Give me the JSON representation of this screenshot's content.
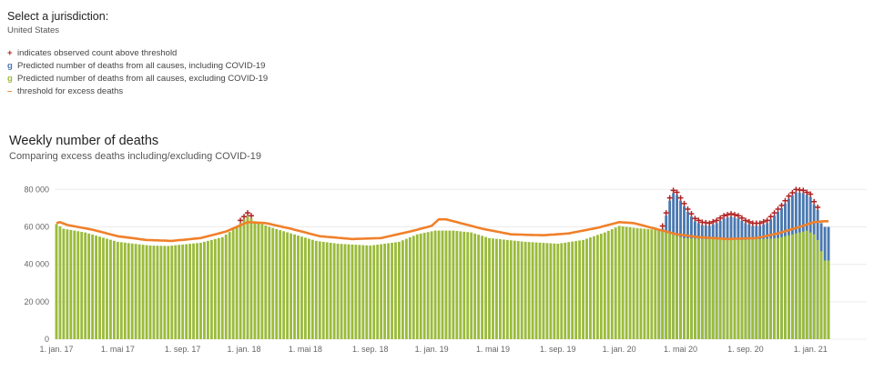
{
  "jurisdiction": {
    "label": "Select a jurisdiction:",
    "value": "United States"
  },
  "legend": [
    {
      "symbol": "+",
      "text": "indicates observed count above threshold",
      "color": "#b22222"
    },
    {
      "symbol": "g",
      "text": "Predicted number of deaths from all causes, including COVID-19",
      "color": "#4a78b0"
    },
    {
      "symbol": "g",
      "text": "Predicted number of deaths from all causes, excluding COVID-19",
      "color": "#9bbb3c"
    },
    {
      "symbol": "–",
      "text": "threshold for excess deaths",
      "color": "#f0802a"
    }
  ],
  "chart_data": {
    "type": "bar",
    "title": "Weekly number of deaths",
    "subtitle": "Comparing excess deaths including/excluding COVID-19",
    "ylim": [
      0,
      85000
    ],
    "yticks": [
      0,
      20000,
      40000,
      60000,
      80000
    ],
    "ytick_labels": [
      "0",
      "20 000",
      "40 000",
      "60 000",
      "80 000"
    ],
    "xticks": [
      {
        "label": "1. jan. 17",
        "week": 0
      },
      {
        "label": "1. mai 17",
        "week": 17
      },
      {
        "label": "1. sep. 17",
        "week": 35
      },
      {
        "label": "1. jan. 18",
        "week": 52
      },
      {
        "label": "1. mai 18",
        "week": 69
      },
      {
        "label": "1. sep. 18",
        "week": 87
      },
      {
        "label": "1. jan. 19",
        "week": 104
      },
      {
        "label": "1. mai 19",
        "week": 121
      },
      {
        "label": "1. sep. 19",
        "week": 139
      },
      {
        "label": "1. jan. 20",
        "week": 156
      },
      {
        "label": "1. mai 20",
        "week": 173
      },
      {
        "label": "1. sep. 20",
        "week": 191
      },
      {
        "label": "1. jan. 21",
        "week": 209
      }
    ],
    "weeks": 215,
    "grid": true,
    "series": [
      {
        "name": "Predicted number of deaths from all causes, excluding COVID-19",
        "color": "#9bbb3c",
        "key": [
          [
            0,
            61500
          ],
          [
            2,
            59000
          ],
          [
            8,
            57000
          ],
          [
            17,
            52000
          ],
          [
            26,
            50000
          ],
          [
            31,
            49800
          ],
          [
            40,
            51500
          ],
          [
            46,
            54500
          ],
          [
            50,
            60000
          ],
          [
            53,
            66000
          ],
          [
            55,
            63000
          ],
          [
            59,
            60000
          ],
          [
            65,
            56500
          ],
          [
            72,
            52500
          ],
          [
            78,
            51000
          ],
          [
            87,
            50000
          ],
          [
            95,
            52000
          ],
          [
            100,
            56000
          ],
          [
            105,
            58000
          ],
          [
            110,
            58000
          ],
          [
            115,
            57000
          ],
          [
            120,
            54000
          ],
          [
            130,
            52000
          ],
          [
            139,
            51000
          ],
          [
            146,
            53000
          ],
          [
            152,
            57000
          ],
          [
            156,
            60500
          ],
          [
            160,
            59500
          ],
          [
            166,
            58500
          ],
          [
            169,
            57000
          ],
          [
            174,
            54000
          ],
          [
            180,
            53500
          ],
          [
            190,
            53000
          ],
          [
            196,
            53500
          ],
          [
            200,
            54000
          ],
          [
            204,
            56000
          ],
          [
            208,
            58000
          ],
          [
            210,
            56000
          ],
          [
            211,
            53000
          ],
          [
            212,
            47000
          ],
          [
            213,
            42000
          ]
        ]
      },
      {
        "name": "Predicted number of deaths from all causes, including COVID-19",
        "color": "#4a78b0",
        "key": [
          [
            0,
            61500
          ],
          [
            2,
            59000
          ],
          [
            8,
            57000
          ],
          [
            17,
            52000
          ],
          [
            26,
            50000
          ],
          [
            31,
            49800
          ],
          [
            40,
            51500
          ],
          [
            46,
            54500
          ],
          [
            50,
            60000
          ],
          [
            53,
            66000
          ],
          [
            55,
            63000
          ],
          [
            59,
            60000
          ],
          [
            65,
            56500
          ],
          [
            72,
            52500
          ],
          [
            78,
            51000
          ],
          [
            87,
            50000
          ],
          [
            95,
            52000
          ],
          [
            100,
            56000
          ],
          [
            105,
            58000
          ],
          [
            110,
            58000
          ],
          [
            115,
            57000
          ],
          [
            120,
            54000
          ],
          [
            130,
            52000
          ],
          [
            139,
            51000
          ],
          [
            146,
            53000
          ],
          [
            152,
            57000
          ],
          [
            156,
            60500
          ],
          [
            160,
            59500
          ],
          [
            166,
            58500
          ],
          [
            168,
            59000
          ],
          [
            169,
            66000
          ],
          [
            170,
            74000
          ],
          [
            171,
            78000
          ],
          [
            172,
            77000
          ],
          [
            173,
            74000
          ],
          [
            175,
            68000
          ],
          [
            177,
            63000
          ],
          [
            179,
            61000
          ],
          [
            181,
            60500
          ],
          [
            183,
            62000
          ],
          [
            185,
            64500
          ],
          [
            187,
            65500
          ],
          [
            189,
            64500
          ],
          [
            191,
            62000
          ],
          [
            193,
            60500
          ],
          [
            195,
            60500
          ],
          [
            197,
            62000
          ],
          [
            199,
            66000
          ],
          [
            201,
            70000
          ],
          [
            203,
            75000
          ],
          [
            205,
            78500
          ],
          [
            207,
            78000
          ],
          [
            209,
            76000
          ],
          [
            210,
            72000
          ],
          [
            211,
            69000
          ],
          [
            212,
            62000
          ],
          [
            213,
            60000
          ]
        ]
      },
      {
        "name": "threshold for excess deaths",
        "color": "#f0802a",
        "type": "line",
        "key": [
          [
            0,
            62000
          ],
          [
            1,
            62500
          ],
          [
            3,
            61000
          ],
          [
            10,
            58500
          ],
          [
            17,
            55000
          ],
          [
            25,
            53000
          ],
          [
            32,
            52500
          ],
          [
            40,
            54000
          ],
          [
            47,
            57500
          ],
          [
            53,
            62500
          ],
          [
            58,
            62000
          ],
          [
            65,
            59000
          ],
          [
            73,
            55000
          ],
          [
            82,
            53500
          ],
          [
            90,
            54000
          ],
          [
            98,
            57500
          ],
          [
            104,
            60500
          ],
          [
            106,
            64000
          ],
          [
            108,
            64000
          ],
          [
            112,
            62000
          ],
          [
            118,
            59000
          ],
          [
            126,
            56000
          ],
          [
            135,
            55500
          ],
          [
            142,
            56500
          ],
          [
            150,
            59500
          ],
          [
            156,
            62500
          ],
          [
            160,
            62000
          ],
          [
            166,
            59000
          ],
          [
            172,
            56000
          ],
          [
            178,
            54500
          ],
          [
            186,
            53500
          ],
          [
            194,
            54000
          ],
          [
            200,
            56500
          ],
          [
            206,
            60000
          ],
          [
            210,
            62500
          ],
          [
            213,
            63000
          ]
        ]
      }
    ],
    "excess_marker_ranges": [
      [
        50,
        55
      ],
      [
        167,
        211
      ]
    ]
  }
}
